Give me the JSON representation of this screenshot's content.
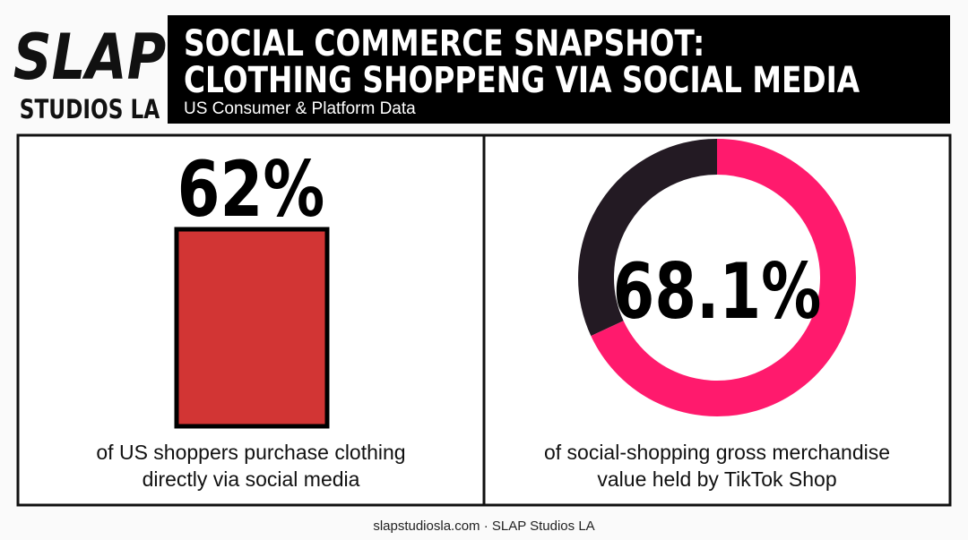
{
  "logo": {
    "top": "SLAP",
    "bottom": "STUDIOS LA"
  },
  "header": {
    "title": [
      "SOCIAL COMMERCE SNAPSHOT:",
      "CLOTHING SHOPPENG VIA SOCIAL MEDIA"
    ],
    "subtitle": "US Consumer & Platform Data"
  },
  "stats": [
    {
      "label": "62%",
      "caption": [
        "of US shoppers purchase clothing",
        "directly via social media"
      ]
    },
    {
      "value": 68.1,
      "label": "68.1%",
      "caption": [
        "of social-shopping gross merchandise",
        "value held by TikTok Shop"
      ]
    }
  ],
  "footer": "slapstudiosla.com · SLAP Studios LA"
}
